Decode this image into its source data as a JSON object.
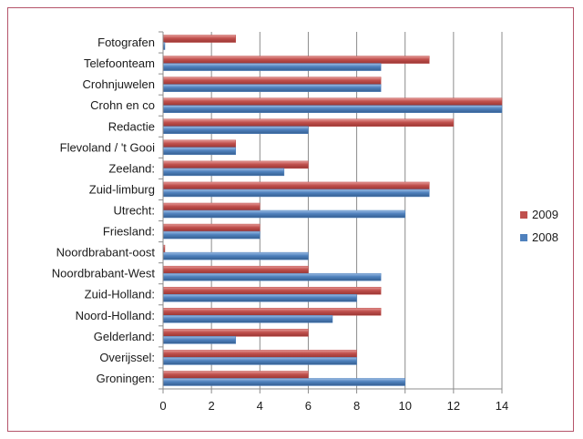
{
  "chart_data": {
    "type": "bar",
    "orientation": "horizontal",
    "categories": [
      "Fotografen",
      "Telefoonteam",
      "Crohnjuwelen",
      "Crohn en co",
      "Redactie",
      "Flevoland / 't Gooi",
      "Zeeland:",
      "Zuid-limburg",
      "Utrecht:",
      "Friesland:",
      "Noordbrabant-oost",
      "Noordbrabant-West",
      "Zuid-Holland:",
      "Noord-Holland:",
      "Gelderland:",
      "Overijssel:",
      "Groningen:"
    ],
    "series": [
      {
        "name": "2009",
        "color": "#c0504d",
        "values": [
          3,
          11,
          9,
          14,
          12,
          3,
          6,
          11,
          4,
          4,
          0,
          6,
          9,
          9,
          6,
          8,
          6
        ]
      },
      {
        "name": "2008",
        "color": "#4f81bd",
        "values": [
          0,
          9,
          9,
          14,
          6,
          3,
          5,
          11,
          10,
          4,
          6,
          9,
          8,
          7,
          3,
          8,
          10
        ]
      }
    ],
    "xlim": [
      0,
      14
    ],
    "xticks": [
      "0",
      "2",
      "4",
      "6",
      "8",
      "10",
      "12",
      "14"
    ],
    "grid": "vertical major gridlines",
    "legend": "right",
    "title": "",
    "xlabel": "",
    "ylabel": ""
  }
}
